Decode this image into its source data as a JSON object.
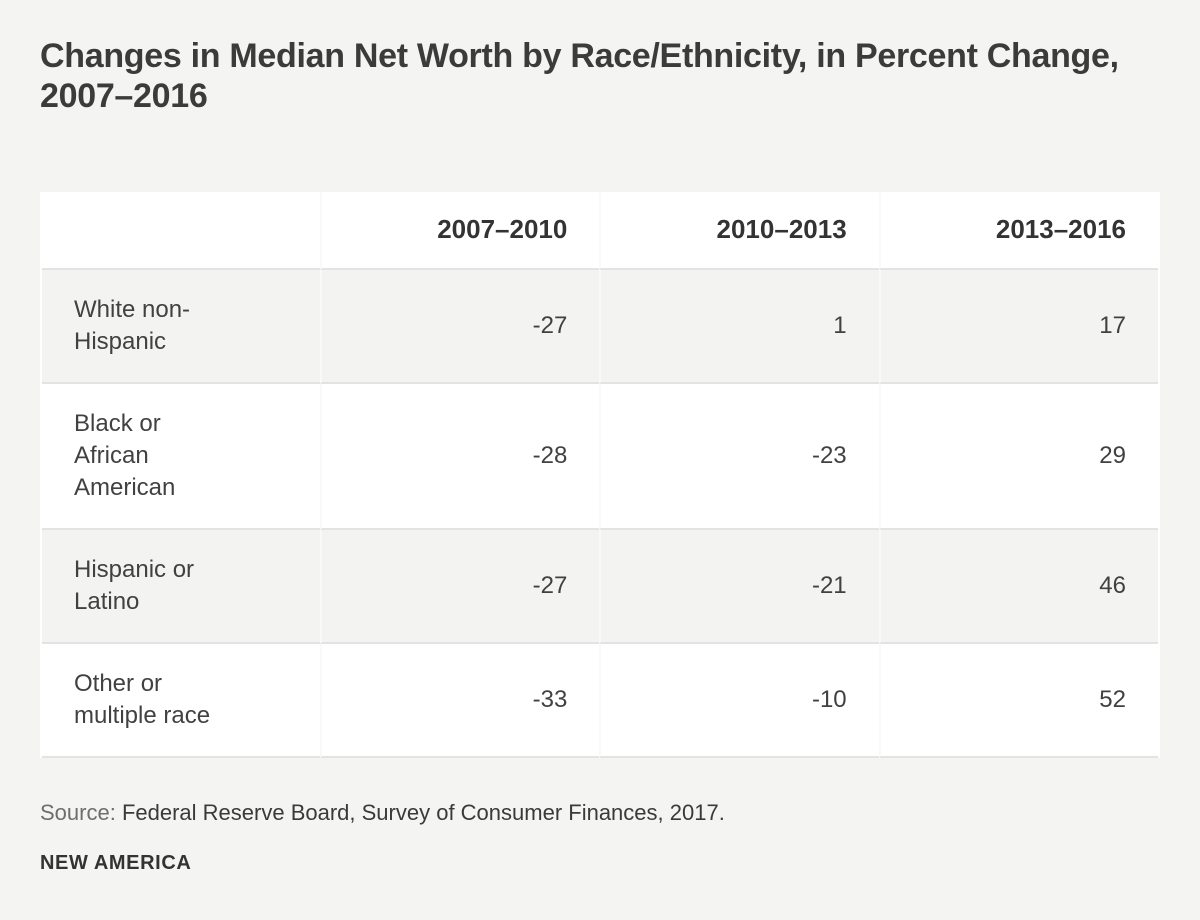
{
  "colors": {
    "page_bg": "#f4f4f2",
    "row_stripe": "#f3f3f1",
    "row_white": "#ffffff",
    "row_border": "#e3e3e2",
    "column_divider": "#f9f9f7",
    "text_dark": "#3b3b3b",
    "text_body": "#414141",
    "source_label_gray": "#6e6e6e"
  },
  "header": {
    "title": "Changes in Median Net Worth by Race/Ethnicity, in Percent Change, 2007–2016"
  },
  "footer": {
    "source_label": "Source:",
    "source_text": "Federal Reserve Board, Survey of Consumer Finances, 2017.",
    "brand": "NEW AMERICA"
  },
  "chart_data": {
    "type": "table",
    "title": "Changes in Median Net Worth by Race/Ethnicity, in Percent Change, 2007–2016",
    "units": "percent change",
    "row_header": "",
    "columns": [
      "2007–2010",
      "2010–2013",
      "2013–2016"
    ],
    "rows": [
      {
        "label": "White non-Hispanic",
        "values": [
          -27,
          1,
          17
        ]
      },
      {
        "label": "Black or African American",
        "values": [
          -28,
          -23,
          29
        ]
      },
      {
        "label": "Hispanic or Latino",
        "values": [
          -27,
          -21,
          46
        ]
      },
      {
        "label": "Other or multiple race",
        "values": [
          -33,
          -10,
          52
        ]
      }
    ],
    "source": "Federal Reserve Board, Survey of Consumer Finances, 2017.",
    "legend": "none",
    "grid": "row and column separators only"
  }
}
